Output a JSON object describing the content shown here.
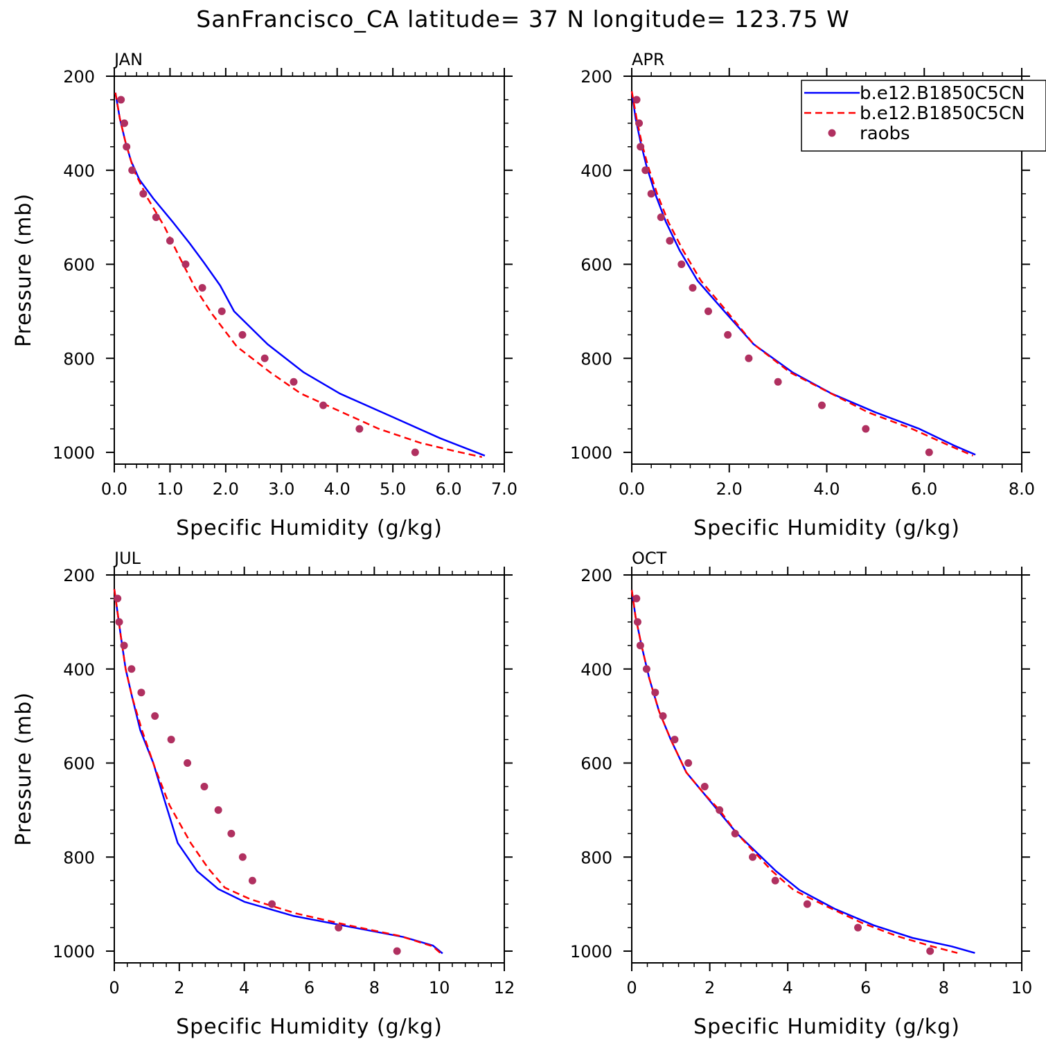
{
  "title": "SanFrancisco_CA  latitude= 37 N longitude= 123.75 W",
  "legend": {
    "entries": [
      {
        "name": "b.e12.B1850C5CN",
        "color": "#0000ff",
        "style": "solid"
      },
      {
        "name": "b.e12.B1850C5CN",
        "color": "#ff0000",
        "style": "dashed"
      },
      {
        "name": "raobs",
        "color": "#b03060",
        "style": "marker"
      }
    ]
  },
  "chart_data": [
    {
      "type": "line",
      "panel": "JAN",
      "xlabel": "Specific Humidity (g/kg)",
      "ylabel": "Pressure (mb)",
      "xlim": [
        0,
        7
      ],
      "ylim": [
        200,
        1025
      ],
      "y_inverted": true,
      "xticks": [
        "0.0",
        "1.0",
        "2.0",
        "3.0",
        "4.0",
        "5.0",
        "6.0",
        "7.0"
      ],
      "xtick_values": [
        0,
        1,
        2,
        3,
        4,
        5,
        6,
        7
      ],
      "yticks": [
        200,
        400,
        600,
        800,
        1000
      ],
      "series": [
        {
          "name": "b.e12.B1850C5CN",
          "color": "#0000ff",
          "style": "solid",
          "points": [
            [
              0.02,
              235
            ],
            [
              0.1,
              290
            ],
            [
              0.2,
              340
            ],
            [
              0.3,
              380
            ],
            [
              0.45,
              420
            ],
            [
              0.7,
              460
            ],
            [
              1.05,
              510
            ],
            [
              1.35,
              555
            ],
            [
              1.6,
              595
            ],
            [
              1.9,
              645
            ],
            [
              2.15,
              700
            ],
            [
              2.75,
              770
            ],
            [
              3.4,
              830
            ],
            [
              4.05,
              875
            ],
            [
              5.0,
              925
            ],
            [
              5.85,
              970
            ],
            [
              6.65,
              1007
            ]
          ]
        },
        {
          "name": "b.e12.B1850C5CN",
          "color": "#ff0000",
          "style": "dashed",
          "points": [
            [
              0.02,
              235
            ],
            [
              0.1,
              290
            ],
            [
              0.2,
              340
            ],
            [
              0.35,
              400
            ],
            [
              0.6,
              460
            ],
            [
              0.9,
              520
            ],
            [
              1.15,
              580
            ],
            [
              1.45,
              650
            ],
            [
              1.75,
              705
            ],
            [
              2.2,
              775
            ],
            [
              2.8,
              830
            ],
            [
              3.35,
              875
            ],
            [
              4.0,
              910
            ],
            [
              4.75,
              950
            ],
            [
              5.5,
              980
            ],
            [
              6.1,
              997
            ],
            [
              6.6,
              1010
            ]
          ]
        },
        {
          "name": "raobs",
          "color": "#b03060",
          "style": "marker",
          "points": [
            [
              0.12,
              250
            ],
            [
              0.18,
              300
            ],
            [
              0.22,
              350
            ],
            [
              0.32,
              400
            ],
            [
              0.52,
              450
            ],
            [
              0.75,
              500
            ],
            [
              1.0,
              550
            ],
            [
              1.28,
              600
            ],
            [
              1.58,
              650
            ],
            [
              1.93,
              700
            ],
            [
              2.3,
              750
            ],
            [
              2.7,
              800
            ],
            [
              3.22,
              850
            ],
            [
              3.75,
              900
            ],
            [
              4.4,
              950
            ],
            [
              5.4,
              1000
            ]
          ]
        }
      ]
    },
    {
      "type": "line",
      "panel": "APR",
      "xlabel": "Specific Humidity (g/kg)",
      "ylabel": "",
      "xlim": [
        0,
        8
      ],
      "ylim": [
        200,
        1025
      ],
      "y_inverted": true,
      "xticks": [
        "0.0",
        "2.0",
        "4.0",
        "6.0",
        "8.0"
      ],
      "xtick_values": [
        0,
        2,
        4,
        6,
        8
      ],
      "yticks": [
        200,
        400,
        600,
        800,
        1000
      ],
      "series": [
        {
          "name": "b.e12.B1850C5CN",
          "color": "#0000ff",
          "style": "solid",
          "points": [
            [
              0.0,
              232
            ],
            [
              0.08,
              290
            ],
            [
              0.18,
              340
            ],
            [
              0.3,
              390
            ],
            [
              0.48,
              450
            ],
            [
              0.7,
              510
            ],
            [
              0.98,
              570
            ],
            [
              1.35,
              635
            ],
            [
              1.9,
              700
            ],
            [
              2.5,
              770
            ],
            [
              3.3,
              830
            ],
            [
              4.1,
              875
            ],
            [
              5.0,
              915
            ],
            [
              5.9,
              950
            ],
            [
              6.6,
              985
            ],
            [
              7.05,
              1005
            ]
          ]
        },
        {
          "name": "b.e12.B1850C5CN",
          "color": "#ff0000",
          "style": "dashed",
          "points": [
            [
              0.0,
              232
            ],
            [
              0.1,
              290
            ],
            [
              0.2,
              340
            ],
            [
              0.33,
              390
            ],
            [
              0.52,
              450
            ],
            [
              0.75,
              510
            ],
            [
              1.05,
              570
            ],
            [
              1.42,
              635
            ],
            [
              1.95,
              700
            ],
            [
              2.5,
              770
            ],
            [
              3.25,
              830
            ],
            [
              4.0,
              870
            ],
            [
              4.85,
              915
            ],
            [
              5.75,
              950
            ],
            [
              6.5,
              985
            ],
            [
              7.0,
              1007
            ]
          ]
        },
        {
          "name": "raobs",
          "color": "#b03060",
          "style": "marker",
          "points": [
            [
              0.1,
              250
            ],
            [
              0.15,
              300
            ],
            [
              0.18,
              350
            ],
            [
              0.28,
              400
            ],
            [
              0.4,
              450
            ],
            [
              0.6,
              500
            ],
            [
              0.78,
              550
            ],
            [
              1.02,
              600
            ],
            [
              1.25,
              650
            ],
            [
              1.57,
              700
            ],
            [
              1.97,
              750
            ],
            [
              2.4,
              800
            ],
            [
              3.0,
              850
            ],
            [
              3.9,
              900
            ],
            [
              4.8,
              950
            ],
            [
              6.1,
              1000
            ]
          ]
        }
      ]
    },
    {
      "type": "line",
      "panel": "JUL",
      "xlabel": "Specific Humidity (g/kg)",
      "ylabel": "Pressure (mb)",
      "xlim": [
        0,
        12
      ],
      "ylim": [
        200,
        1025
      ],
      "y_inverted": true,
      "xticks": [
        "0",
        "2",
        "4",
        "6",
        "8",
        "10",
        "12"
      ],
      "xtick_values": [
        0,
        2,
        4,
        6,
        8,
        10,
        12
      ],
      "yticks": [
        200,
        400,
        600,
        800,
        1000
      ],
      "series": [
        {
          "name": "b.e12.B1850C5CN",
          "color": "#0000ff",
          "style": "solid",
          "points": [
            [
              0.0,
              230
            ],
            [
              0.1,
              280
            ],
            [
              0.2,
              330
            ],
            [
              0.35,
              400
            ],
            [
              0.55,
              460
            ],
            [
              0.8,
              530
            ],
            [
              1.2,
              600
            ],
            [
              1.55,
              680
            ],
            [
              1.95,
              770
            ],
            [
              2.55,
              830
            ],
            [
              3.2,
              868
            ],
            [
              4.0,
              895
            ],
            [
              5.5,
              925
            ],
            [
              7.0,
              945
            ],
            [
              8.9,
              970
            ],
            [
              9.8,
              988
            ],
            [
              10.1,
              1005
            ]
          ]
        },
        {
          "name": "b.e12.B1850C5CN",
          "color": "#ff0000",
          "style": "dashed",
          "points": [
            [
              0.0,
              230
            ],
            [
              0.1,
              280
            ],
            [
              0.2,
              330
            ],
            [
              0.35,
              400
            ],
            [
              0.55,
              460
            ],
            [
              0.85,
              530
            ],
            [
              1.25,
              610
            ],
            [
              1.7,
              690
            ],
            [
              2.35,
              770
            ],
            [
              2.9,
              825
            ],
            [
              3.4,
              865
            ],
            [
              4.2,
              890
            ],
            [
              5.6,
              920
            ],
            [
              7.2,
              945
            ],
            [
              8.8,
              968
            ],
            [
              9.8,
              990
            ],
            [
              10.05,
              1005
            ]
          ]
        },
        {
          "name": "raobs",
          "color": "#b03060",
          "style": "marker",
          "points": [
            [
              0.1,
              250
            ],
            [
              0.15,
              300
            ],
            [
              0.3,
              350
            ],
            [
              0.53,
              400
            ],
            [
              0.83,
              450
            ],
            [
              1.25,
              500
            ],
            [
              1.75,
              550
            ],
            [
              2.25,
              600
            ],
            [
              2.77,
              650
            ],
            [
              3.2,
              700
            ],
            [
              3.6,
              750
            ],
            [
              3.95,
              800
            ],
            [
              4.25,
              850
            ],
            [
              4.85,
              900
            ],
            [
              6.9,
              950
            ],
            [
              8.7,
              1000
            ]
          ]
        }
      ]
    },
    {
      "type": "line",
      "panel": "OCT",
      "xlabel": "Specific Humidity (g/kg)",
      "ylabel": "",
      "xlim": [
        0,
        10
      ],
      "ylim": [
        200,
        1025
      ],
      "y_inverted": true,
      "xticks": [
        "0",
        "2",
        "4",
        "6",
        "8",
        "10"
      ],
      "xtick_values": [
        0,
        2,
        4,
        6,
        8,
        10
      ],
      "yticks": [
        200,
        400,
        600,
        800,
        1000
      ],
      "series": [
        {
          "name": "b.e12.B1850C5CN",
          "color": "#0000ff",
          "style": "solid",
          "points": [
            [
              0.0,
              232
            ],
            [
              0.1,
              290
            ],
            [
              0.25,
              350
            ],
            [
              0.45,
              420
            ],
            [
              0.7,
              490
            ],
            [
              1.0,
              550
            ],
            [
              1.4,
              620
            ],
            [
              1.85,
              665
            ],
            [
              2.2,
              700
            ],
            [
              2.7,
              750
            ],
            [
              3.2,
              790
            ],
            [
              3.7,
              830
            ],
            [
              4.3,
              870
            ],
            [
              5.2,
              910
            ],
            [
              6.2,
              945
            ],
            [
              7.2,
              972
            ],
            [
              8.2,
              990
            ],
            [
              8.8,
              1004
            ]
          ]
        },
        {
          "name": "b.e12.B1850C5CN",
          "color": "#ff0000",
          "style": "dashed",
          "points": [
            [
              0.0,
              232
            ],
            [
              0.1,
              290
            ],
            [
              0.25,
              350
            ],
            [
              0.45,
              420
            ],
            [
              0.7,
              490
            ],
            [
              1.0,
              550
            ],
            [
              1.4,
              620
            ],
            [
              1.85,
              665
            ],
            [
              2.25,
              700
            ],
            [
              2.7,
              750
            ],
            [
              3.15,
              790
            ],
            [
              3.6,
              830
            ],
            [
              4.15,
              870
            ],
            [
              5.0,
              905
            ],
            [
              5.9,
              940
            ],
            [
              6.8,
              968
            ],
            [
              7.7,
              990
            ],
            [
              8.35,
              1004
            ]
          ]
        },
        {
          "name": "raobs",
          "color": "#b03060",
          "style": "marker",
          "points": [
            [
              0.12,
              250
            ],
            [
              0.15,
              300
            ],
            [
              0.22,
              350
            ],
            [
              0.38,
              400
            ],
            [
              0.6,
              450
            ],
            [
              0.8,
              500
            ],
            [
              1.1,
              550
            ],
            [
              1.45,
              600
            ],
            [
              1.87,
              650
            ],
            [
              2.25,
              700
            ],
            [
              2.65,
              750
            ],
            [
              3.1,
              800
            ],
            [
              3.68,
              850
            ],
            [
              4.5,
              900
            ],
            [
              5.8,
              950
            ],
            [
              7.65,
              1000
            ]
          ]
        }
      ]
    }
  ]
}
